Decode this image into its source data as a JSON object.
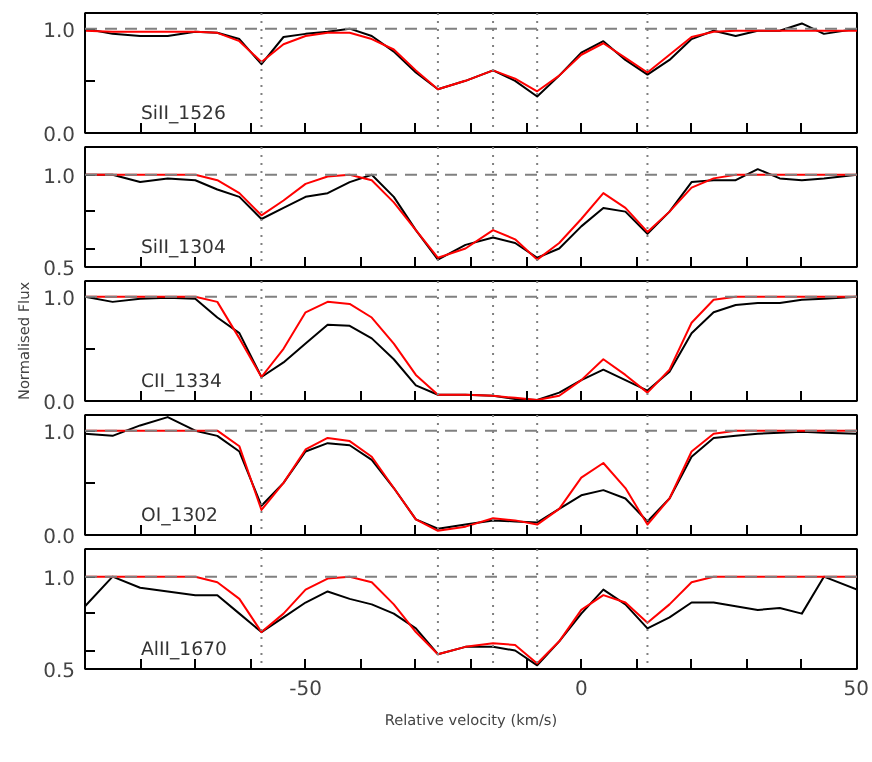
{
  "chart_data": [
    {
      "type": "line",
      "annotations": [
        "SiII_1526"
      ],
      "xlim": [
        -90,
        50
      ],
      "ylim": [
        0,
        1.15
      ],
      "tick_labels": "y",
      "xticks": [
        {
          "value": -80,
          "label": null
        },
        {
          "value": -70,
          "label": null
        },
        {
          "value": -60,
          "label": null
        },
        -50,
        {
          "value": -40,
          "label": null
        },
        {
          "value": -30,
          "label": null
        },
        {
          "value": -20,
          "label": null
        },
        {
          "value": -10,
          "label": null
        },
        0,
        {
          "value": 10,
          "label": null
        },
        {
          "value": 20,
          "label": null
        },
        {
          "value": 30,
          "label": null
        },
        {
          "value": 40,
          "label": null
        },
        50
      ],
      "yticks": [
        {
          "value": 0,
          "label": "0.0"
        },
        {
          "value": 0.5,
          "label": null
        },
        {
          "value": 1,
          "label": "1.0"
        }
      ],
      "x": [
        -90,
        -85,
        -80,
        -75,
        -70,
        -66,
        -62,
        -58,
        -54,
        -50,
        -46,
        -42,
        -38,
        -34,
        -30,
        -26,
        -21,
        -16,
        -12,
        -8,
        -4,
        0,
        4,
        8,
        12,
        16,
        20,
        24,
        28,
        32,
        36,
        40,
        44,
        50
      ],
      "ref_lines": [
        {
          "axis": "y",
          "value": 1,
          "color": "#808080",
          "line_style": "dashed"
        },
        {
          "axis": "x",
          "value": -58,
          "color": "#808080",
          "line_style": "dotted"
        },
        {
          "axis": "x",
          "value": -26,
          "color": "#808080",
          "line_style": "dotted"
        },
        {
          "axis": "x",
          "value": -16,
          "color": "#808080",
          "line_style": "dotted"
        },
        {
          "axis": "x",
          "value": -8,
          "color": "#808080",
          "line_style": "dotted"
        },
        {
          "axis": "x",
          "value": 12,
          "color": "#808080",
          "line_style": "dotted"
        }
      ],
      "series": [
        {
          "color": "#000000",
          "values": [
            1.0,
            0.95,
            0.93,
            0.93,
            0.97,
            0.96,
            0.9,
            0.66,
            0.92,
            0.95,
            0.97,
            1.0,
            0.93,
            0.78,
            0.58,
            0.42,
            0.5,
            0.6,
            0.5,
            0.35,
            0.55,
            0.77,
            0.88,
            0.7,
            0.56,
            0.7,
            0.9,
            0.98,
            0.93,
            0.98,
            0.98,
            1.05,
            0.95,
            1.0
          ]
        },
        {
          "color": "#ff0000",
          "values": [
            0.98,
            0.97,
            0.97,
            0.97,
            0.97,
            0.96,
            0.88,
            0.68,
            0.85,
            0.93,
            0.96,
            0.96,
            0.9,
            0.8,
            0.6,
            0.42,
            0.5,
            0.6,
            0.52,
            0.4,
            0.55,
            0.75,
            0.86,
            0.72,
            0.58,
            0.75,
            0.92,
            0.97,
            0.98,
            0.98,
            0.98,
            0.98,
            0.98,
            0.98
          ]
        }
      ]
    },
    {
      "type": "line",
      "annotations": [
        "SiII_1304"
      ],
      "xlim": [
        -90,
        50
      ],
      "ylim": [
        0.5,
        1.15
      ],
      "tick_labels": "y",
      "xticks": [
        {
          "value": -80,
          "label": null
        },
        {
          "value": -70,
          "label": null
        },
        {
          "value": -60,
          "label": null
        },
        -50,
        {
          "value": -40,
          "label": null
        },
        {
          "value": -30,
          "label": null
        },
        {
          "value": -20,
          "label": null
        },
        {
          "value": -10,
          "label": null
        },
        0,
        {
          "value": 10,
          "label": null
        },
        {
          "value": 20,
          "label": null
        },
        {
          "value": 30,
          "label": null
        },
        {
          "value": 40,
          "label": null
        },
        50
      ],
      "yticks": [
        {
          "value": 0.5,
          "label": "0.5"
        },
        {
          "value": 0.6,
          "label": null
        },
        {
          "value": 0.8,
          "label": null
        },
        {
          "value": 1,
          "label": "1.0"
        }
      ],
      "x": [
        -90,
        -85,
        -80,
        -75,
        -70,
        -66,
        -62,
        -58,
        -54,
        -50,
        -46,
        -42,
        -38,
        -34,
        -30,
        -26,
        -21,
        -16,
        -12,
        -8,
        -4,
        0,
        4,
        8,
        12,
        16,
        20,
        24,
        28,
        32,
        36,
        40,
        44,
        50
      ],
      "ref_lines": [
        {
          "axis": "y",
          "value": 1,
          "color": "#808080",
          "line_style": "dashed"
        },
        {
          "axis": "x",
          "value": -58,
          "color": "#808080",
          "line_style": "dotted"
        },
        {
          "axis": "x",
          "value": -26,
          "color": "#808080",
          "line_style": "dotted"
        },
        {
          "axis": "x",
          "value": -16,
          "color": "#808080",
          "line_style": "dotted"
        },
        {
          "axis": "x",
          "value": -8,
          "color": "#808080",
          "line_style": "dotted"
        },
        {
          "axis": "x",
          "value": 12,
          "color": "#808080",
          "line_style": "dotted"
        }
      ],
      "series": [
        {
          "color": "#000000",
          "values": [
            1.0,
            1.0,
            0.96,
            0.98,
            0.97,
            0.92,
            0.88,
            0.76,
            0.82,
            0.88,
            0.9,
            0.96,
            1.0,
            0.88,
            0.7,
            0.54,
            0.62,
            0.66,
            0.63,
            0.55,
            0.6,
            0.72,
            0.82,
            0.8,
            0.68,
            0.8,
            0.96,
            0.97,
            0.97,
            1.03,
            0.98,
            0.97,
            0.98,
            1.0
          ]
        },
        {
          "color": "#ff0000",
          "values": [
            1.0,
            1.0,
            1.0,
            1.0,
            1.0,
            0.97,
            0.9,
            0.78,
            0.86,
            0.95,
            0.99,
            1.0,
            0.97,
            0.85,
            0.7,
            0.55,
            0.6,
            0.7,
            0.65,
            0.54,
            0.63,
            0.76,
            0.9,
            0.82,
            0.69,
            0.8,
            0.93,
            0.98,
            1.0,
            1.0,
            1.0,
            1.0,
            1.0,
            1.0
          ]
        }
      ]
    },
    {
      "type": "line",
      "annotations": [
        "CII_1334"
      ],
      "ylabel": "Normalised Flux",
      "xlim": [
        -90,
        50
      ],
      "ylim": [
        0,
        1.15
      ],
      "tick_labels": "y",
      "xticks": [
        {
          "value": -80,
          "label": null
        },
        {
          "value": -70,
          "label": null
        },
        {
          "value": -60,
          "label": null
        },
        -50,
        {
          "value": -40,
          "label": null
        },
        {
          "value": -30,
          "label": null
        },
        {
          "value": -20,
          "label": null
        },
        {
          "value": -10,
          "label": null
        },
        0,
        {
          "value": 10,
          "label": null
        },
        {
          "value": 20,
          "label": null
        },
        {
          "value": 30,
          "label": null
        },
        {
          "value": 40,
          "label": null
        },
        50
      ],
      "yticks": [
        {
          "value": 0,
          "label": "0.0"
        },
        {
          "value": 0.5,
          "label": null
        },
        {
          "value": 1,
          "label": "1.0"
        }
      ],
      "x": [
        -90,
        -85,
        -80,
        -75,
        -70,
        -66,
        -62,
        -58,
        -54,
        -50,
        -46,
        -42,
        -38,
        -34,
        -30,
        -26,
        -21,
        -16,
        -12,
        -8,
        -4,
        0,
        4,
        8,
        12,
        16,
        20,
        24,
        28,
        32,
        36,
        40,
        44,
        50
      ],
      "ref_lines": [
        {
          "axis": "y",
          "value": 1,
          "color": "#808080",
          "line_style": "dashed"
        },
        {
          "axis": "x",
          "value": -58,
          "color": "#808080",
          "line_style": "dotted"
        },
        {
          "axis": "x",
          "value": -26,
          "color": "#808080",
          "line_style": "dotted"
        },
        {
          "axis": "x",
          "value": -16,
          "color": "#808080",
          "line_style": "dotted"
        },
        {
          "axis": "x",
          "value": -8,
          "color": "#808080",
          "line_style": "dotted"
        },
        {
          "axis": "x",
          "value": 12,
          "color": "#808080",
          "line_style": "dotted"
        }
      ],
      "series": [
        {
          "color": "#000000",
          "values": [
            1.0,
            0.95,
            0.98,
            0.99,
            0.98,
            0.8,
            0.65,
            0.23,
            0.37,
            0.55,
            0.73,
            0.72,
            0.6,
            0.4,
            0.15,
            0.06,
            0.06,
            0.05,
            0.02,
            0.01,
            0.08,
            0.2,
            0.3,
            0.2,
            0.1,
            0.28,
            0.65,
            0.85,
            0.92,
            0.94,
            0.94,
            0.97,
            0.98,
            1.0
          ]
        },
        {
          "color": "#ff0000",
          "values": [
            1.0,
            1.0,
            1.0,
            1.0,
            1.0,
            0.95,
            0.6,
            0.23,
            0.5,
            0.85,
            0.95,
            0.93,
            0.8,
            0.55,
            0.25,
            0.06,
            0.06,
            0.05,
            0.03,
            0.01,
            0.05,
            0.2,
            0.4,
            0.25,
            0.08,
            0.3,
            0.75,
            0.97,
            1.0,
            1.0,
            1.0,
            1.0,
            1.0,
            1.0
          ]
        }
      ]
    },
    {
      "type": "line",
      "annotations": [
        "OI_1302"
      ],
      "xlim": [
        -90,
        50
      ],
      "ylim": [
        0,
        1.15
      ],
      "tick_labels": "y",
      "xticks": [
        {
          "value": -80,
          "label": null
        },
        {
          "value": -70,
          "label": null
        },
        {
          "value": -60,
          "label": null
        },
        -50,
        {
          "value": -40,
          "label": null
        },
        {
          "value": -30,
          "label": null
        },
        {
          "value": -20,
          "label": null
        },
        {
          "value": -10,
          "label": null
        },
        0,
        {
          "value": 10,
          "label": null
        },
        {
          "value": 20,
          "label": null
        },
        {
          "value": 30,
          "label": null
        },
        {
          "value": 40,
          "label": null
        },
        50
      ],
      "yticks": [
        {
          "value": 0,
          "label": "0.0"
        },
        {
          "value": 0.5,
          "label": null
        },
        {
          "value": 1,
          "label": "1.0"
        }
      ],
      "x": [
        -90,
        -85,
        -80,
        -75,
        -70,
        -66,
        -62,
        -58,
        -54,
        -50,
        -46,
        -42,
        -38,
        -34,
        -30,
        -26,
        -21,
        -16,
        -12,
        -8,
        -4,
        0,
        4,
        8,
        12,
        16,
        20,
        24,
        28,
        32,
        36,
        40,
        44,
        50
      ],
      "ref_lines": [
        {
          "axis": "y",
          "value": 1,
          "color": "#808080",
          "line_style": "dashed"
        },
        {
          "axis": "x",
          "value": -58,
          "color": "#808080",
          "line_style": "dotted"
        },
        {
          "axis": "x",
          "value": -26,
          "color": "#808080",
          "line_style": "dotted"
        },
        {
          "axis": "x",
          "value": -16,
          "color": "#808080",
          "line_style": "dotted"
        },
        {
          "axis": "x",
          "value": -8,
          "color": "#808080",
          "line_style": "dotted"
        },
        {
          "axis": "x",
          "value": 12,
          "color": "#808080",
          "line_style": "dotted"
        }
      ],
      "series": [
        {
          "color": "#000000",
          "values": [
            0.97,
            0.95,
            1.05,
            1.13,
            1.0,
            0.95,
            0.8,
            0.28,
            0.5,
            0.8,
            0.88,
            0.86,
            0.72,
            0.45,
            0.15,
            0.06,
            0.1,
            0.14,
            0.13,
            0.12,
            0.25,
            0.38,
            0.43,
            0.35,
            0.13,
            0.35,
            0.75,
            0.93,
            0.95,
            0.97,
            0.98,
            0.99,
            0.98,
            0.97
          ]
        },
        {
          "color": "#ff0000",
          "values": [
            1.0,
            1.0,
            1.0,
            1.0,
            1.0,
            1.0,
            0.85,
            0.24,
            0.5,
            0.82,
            0.93,
            0.9,
            0.75,
            0.45,
            0.15,
            0.04,
            0.08,
            0.16,
            0.14,
            0.1,
            0.25,
            0.55,
            0.69,
            0.45,
            0.1,
            0.35,
            0.8,
            0.97,
            1.0,
            1.0,
            1.0,
            1.0,
            1.0,
            1.0
          ]
        }
      ]
    },
    {
      "type": "line",
      "annotations": [
        "AlII_1670"
      ],
      "xlabel": "Relative velocity (km/s)",
      "xlim": [
        -90,
        50
      ],
      "ylim": [
        0.5,
        1.15
      ],
      "xticks": [
        {
          "value": -80,
          "label": null
        },
        {
          "value": -70,
          "label": null
        },
        {
          "value": -60,
          "label": null
        },
        -50,
        {
          "value": -40,
          "label": null
        },
        {
          "value": -30,
          "label": null
        },
        {
          "value": -20,
          "label": null
        },
        {
          "value": -10,
          "label": null
        },
        0,
        {
          "value": 10,
          "label": null
        },
        {
          "value": 20,
          "label": null
        },
        {
          "value": 30,
          "label": null
        },
        {
          "value": 40,
          "label": null
        },
        50
      ],
      "yticks": [
        {
          "value": 0.5,
          "label": "0.5"
        },
        {
          "value": 0.6,
          "label": null
        },
        {
          "value": 0.8,
          "label": null
        },
        {
          "value": 1,
          "label": "1.0"
        }
      ],
      "x": [
        -90,
        -85,
        -80,
        -75,
        -70,
        -66,
        -62,
        -58,
        -54,
        -50,
        -46,
        -42,
        -38,
        -34,
        -30,
        -26,
        -21,
        -16,
        -12,
        -8,
        -4,
        0,
        4,
        8,
        12,
        16,
        20,
        24,
        28,
        32,
        36,
        40,
        44,
        50
      ],
      "ref_lines": [
        {
          "axis": "y",
          "value": 1,
          "color": "#808080",
          "line_style": "dashed"
        },
        {
          "axis": "x",
          "value": -58,
          "color": "#808080",
          "line_style": "dotted"
        },
        {
          "axis": "x",
          "value": -26,
          "color": "#808080",
          "line_style": "dotted"
        },
        {
          "axis": "x",
          "value": -16,
          "color": "#808080",
          "line_style": "dotted"
        },
        {
          "axis": "x",
          "value": -8,
          "color": "#808080",
          "line_style": "dotted"
        },
        {
          "axis": "x",
          "value": 12,
          "color": "#808080",
          "line_style": "dotted"
        }
      ],
      "series": [
        {
          "color": "#000000",
          "values": [
            0.84,
            1.0,
            0.94,
            0.92,
            0.9,
            0.9,
            0.8,
            0.7,
            0.78,
            0.86,
            0.92,
            0.88,
            0.85,
            0.8,
            0.72,
            0.58,
            0.62,
            0.62,
            0.6,
            0.52,
            0.65,
            0.8,
            0.93,
            0.85,
            0.72,
            0.78,
            0.86,
            0.86,
            0.84,
            0.82,
            0.83,
            0.8,
            1.0,
            0.93
          ]
        },
        {
          "color": "#ff0000",
          "values": [
            1.0,
            1.0,
            1.0,
            1.0,
            1.0,
            0.97,
            0.88,
            0.7,
            0.8,
            0.93,
            0.99,
            1.0,
            0.97,
            0.85,
            0.7,
            0.58,
            0.62,
            0.64,
            0.63,
            0.53,
            0.65,
            0.82,
            0.9,
            0.86,
            0.75,
            0.85,
            0.97,
            1.0,
            1.0,
            1.0,
            1.0,
            1.0,
            1.0,
            1.0
          ]
        }
      ]
    }
  ]
}
